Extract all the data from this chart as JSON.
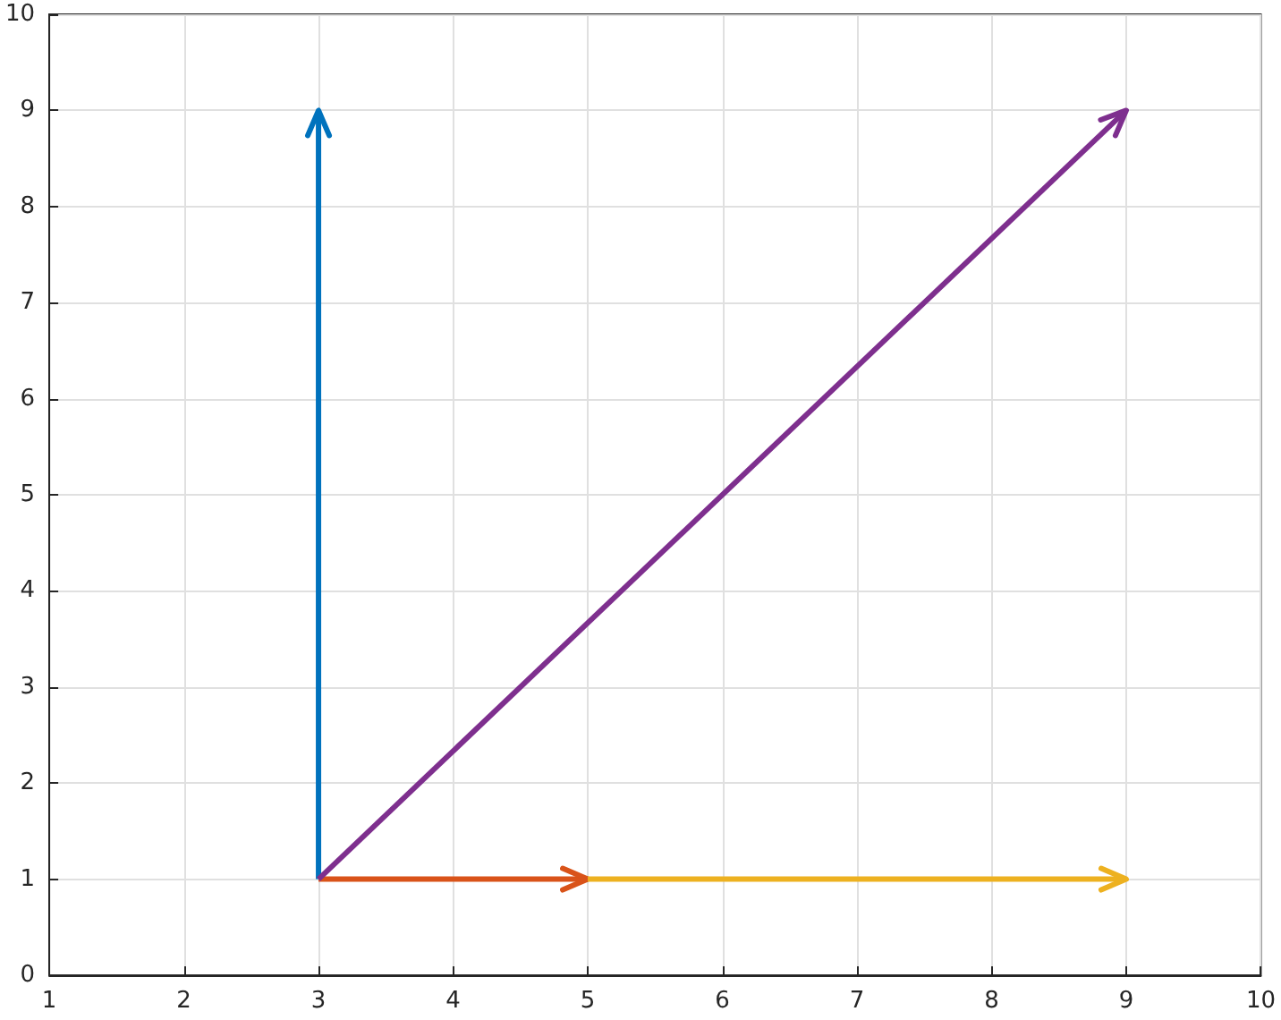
{
  "chart_data": {
    "type": "line",
    "xlim": [
      1,
      10
    ],
    "ylim": [
      0,
      10
    ],
    "xticks": [
      1,
      2,
      3,
      4,
      5,
      6,
      7,
      8,
      9,
      10
    ],
    "yticks": [
      0,
      1,
      2,
      3,
      4,
      5,
      6,
      7,
      8,
      9,
      10
    ],
    "grid": true,
    "series": [
      {
        "color": "#0072bd",
        "x": [
          3,
          3
        ],
        "values": [
          1,
          9
        ]
      },
      {
        "color": "#d95319",
        "x": [
          3,
          5
        ],
        "values": [
          1,
          1
        ]
      },
      {
        "color": "#edb120",
        "x": [
          5,
          9
        ],
        "values": [
          1,
          1
        ]
      },
      {
        "color": "#7e2f8e",
        "x": [
          3,
          9
        ],
        "values": [
          1,
          9
        ]
      }
    ]
  }
}
